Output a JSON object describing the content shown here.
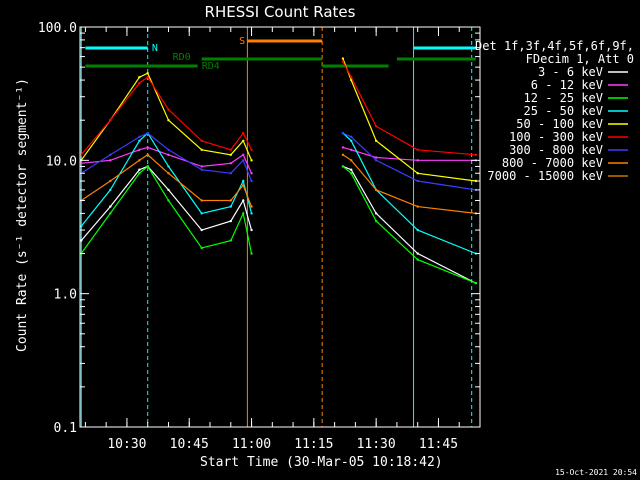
{
  "chart_data": {
    "type": "line",
    "title": "RHESSI Count Rates",
    "xlabel": "Start Time (30-Mar-05 10:18:42)",
    "ylabel": "Count Rate (s⁻¹ detector segment⁻¹)",
    "y_scale": "log",
    "ylim": [
      0.1,
      100.0
    ],
    "xlim": [
      "10:18:42",
      "11:55:00"
    ],
    "x_ticks": [
      "10:30",
      "10:45",
      "11:00",
      "11:15",
      "11:30",
      "11:45"
    ],
    "y_ticks": [
      "0.1",
      "1.0",
      "10.0",
      "100.0"
    ],
    "grid": false,
    "legend_position": "right",
    "legend_header": [
      "Det 1f,3f,4f,5f,6f,9f,",
      "FDecim 1, Att 0"
    ],
    "series": [
      {
        "name": "3 - 6 keV",
        "color": "#ffffff",
        "x": [
          "10:19",
          "10:26",
          "10:33",
          "10:35",
          "10:40",
          "10:48",
          "10:55",
          "10:58",
          "11:00",
          "11:05",
          "11:22",
          "11:24",
          "11:30",
          "11:40",
          "11:54"
        ],
        "y": [
          2.5,
          4.5,
          8.5,
          9,
          6,
          3,
          3.5,
          5,
          3,
          null,
          9,
          8.5,
          4,
          2,
          1.2
        ]
      },
      {
        "name": "6 - 12 keV",
        "color": "#ff3cff",
        "x": [
          "10:19",
          "10:26",
          "10:33",
          "10:35",
          "10:40",
          "10:48",
          "10:55",
          "10:58",
          "11:00",
          "11:05",
          "11:22",
          "11:24",
          "11:30",
          "11:40",
          "11:54"
        ],
        "y": [
          9.5,
          10,
          12,
          12.5,
          11,
          9,
          9.5,
          11,
          8,
          null,
          12.5,
          12,
          10.5,
          10,
          10
        ]
      },
      {
        "name": "12 - 25 keV",
        "color": "#00ff00",
        "x": [
          "10:19",
          "10:26",
          "10:33",
          "10:35",
          "10:40",
          "10:48",
          "10:55",
          "10:58",
          "11:00",
          "11:05",
          "11:22",
          "11:24",
          "11:30",
          "11:40",
          "11:54"
        ],
        "y": [
          2,
          4,
          8,
          9,
          5,
          2.2,
          2.5,
          4,
          2,
          null,
          9,
          8,
          3.5,
          1.8,
          1.2
        ]
      },
      {
        "name": "25 - 50 keV",
        "color": "#00ffff",
        "x": [
          "10:19",
          "10:26",
          "10:33",
          "10:35",
          "10:40",
          "10:48",
          "10:55",
          "10:58",
          "11:00",
          "11:05",
          "11:22",
          "11:24",
          "11:30",
          "11:40",
          "11:54"
        ],
        "y": [
          3.2,
          6,
          14,
          16,
          9,
          4,
          4.5,
          7,
          4,
          null,
          16,
          14,
          6,
          3,
          2
        ]
      },
      {
        "name": "50 - 100 keV",
        "color": "#ffff00",
        "x": [
          "10:19",
          "10:26",
          "10:33",
          "10:35",
          "10:40",
          "10:48",
          "10:55",
          "10:58",
          "11:00",
          "11:05",
          "11:22",
          "11:24",
          "11:30",
          "11:40",
          "11:54"
        ],
        "y": [
          10,
          20,
          42,
          45,
          20,
          12,
          11,
          14,
          10,
          null,
          58,
          40,
          14,
          8,
          7
        ]
      },
      {
        "name": "100 - 300 keV",
        "color": "#ff0000",
        "x": [
          "10:19",
          "10:26",
          "10:33",
          "10:35",
          "10:40",
          "10:48",
          "10:55",
          "10:58",
          "11:00",
          "11:05",
          "11:22",
          "11:24",
          "11:30",
          "11:40",
          "11:54"
        ],
        "y": [
          11,
          20,
          38,
          42,
          24,
          14,
          12,
          16,
          12,
          null,
          55,
          42,
          18,
          12,
          11
        ]
      },
      {
        "name": "300 - 800 keV",
        "color": "#3c3cff",
        "x": [
          "10:19",
          "10:26",
          "10:33",
          "10:35",
          "10:40",
          "10:48",
          "10:55",
          "10:58",
          "11:00",
          "11:05",
          "11:22",
          "11:24",
          "11:30",
          "11:40",
          "11:54"
        ],
        "y": [
          8,
          11,
          15,
          16,
          12,
          8.5,
          8,
          10,
          7,
          null,
          16,
          15,
          10,
          7,
          6
        ]
      },
      {
        "name": "800 - 7000 keV",
        "color": "#ff8000",
        "x": [
          "10:19",
          "10:26",
          "10:33",
          "10:35",
          "10:40",
          "10:48",
          "10:55",
          "10:58",
          "11:00",
          "11:05",
          "11:22",
          "11:24",
          "11:30",
          "11:40",
          "11:54"
        ],
        "y": [
          5,
          7,
          10,
          11,
          8,
          5,
          5,
          6.5,
          4.5,
          null,
          11,
          10,
          6,
          4.5,
          4
        ]
      },
      {
        "name": "7000 - 15000 keV",
        "color": "#c87800",
        "x": [
          "10:19",
          "10:26",
          "10:33",
          "10:35",
          "10:40",
          "10:48",
          "10:55",
          "10:58",
          "11:00",
          "11:05",
          "11:22",
          "11:24",
          "11:30",
          "11:40",
          "11:54"
        ],
        "y": [
          null,
          null,
          null,
          null,
          null,
          null,
          null,
          null,
          null,
          null,
          null,
          null,
          null,
          null,
          null
        ]
      }
    ],
    "annotations": [
      {
        "label": "N",
        "color": "#00ffff"
      },
      {
        "label": "S",
        "color": "#ff8000"
      },
      {
        "label": "RD0",
        "color": "#008000"
      },
      {
        "label": "RD4",
        "color": "#008000"
      }
    ]
  },
  "footer": {
    "timestamp": "15-Oct-2021 20:54"
  }
}
